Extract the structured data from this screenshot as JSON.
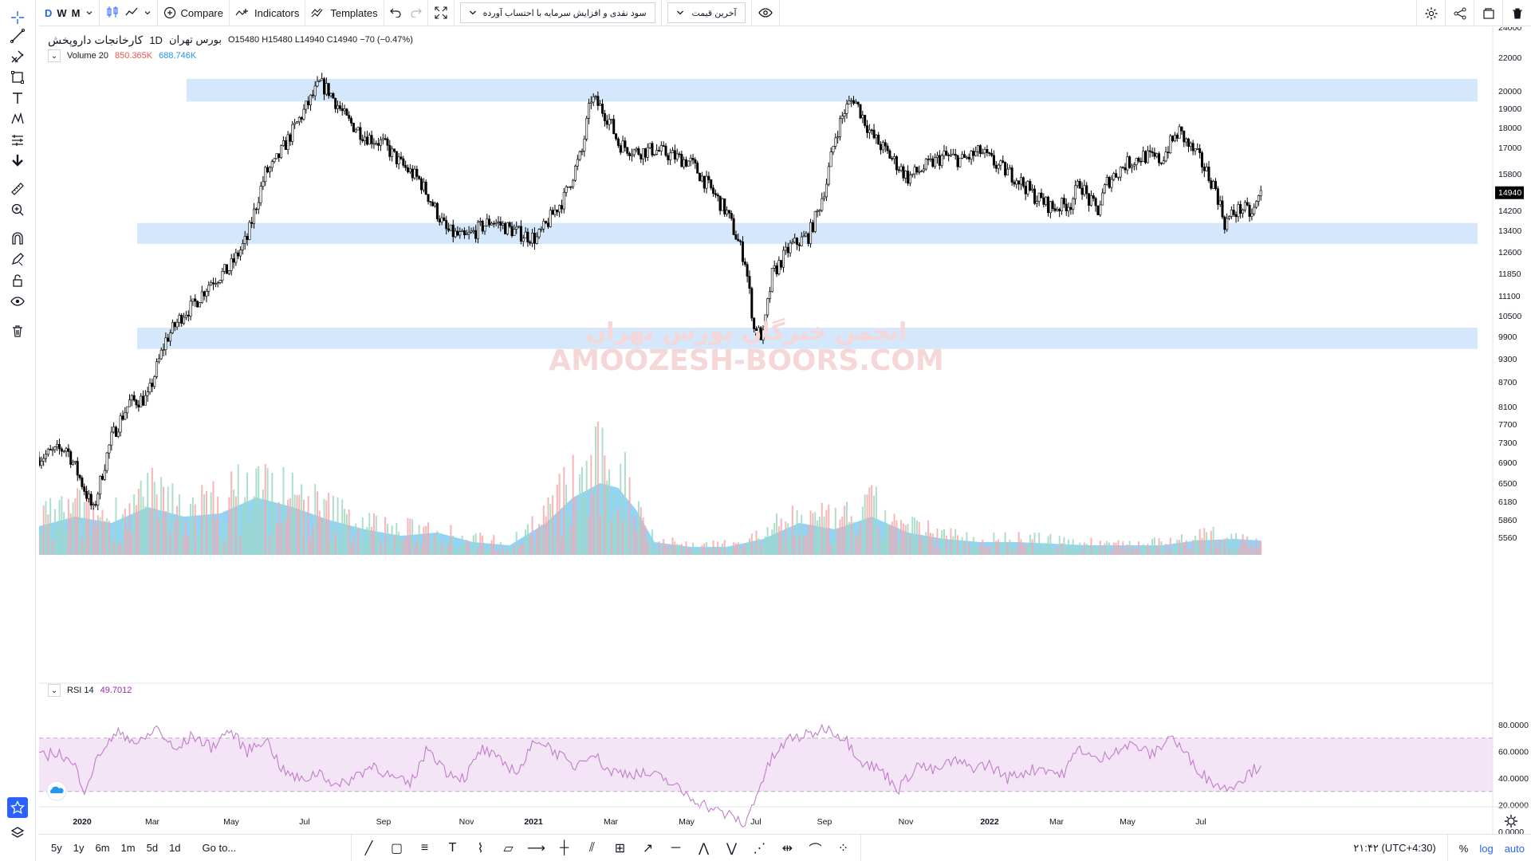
{
  "toolbar": {
    "intervals": [
      "D",
      "W",
      "M"
    ],
    "compare": "Compare",
    "indicators": "Indicators",
    "templates": "Templates",
    "preset_dropdown": "سود نقدی و افزایش سرمایه با احتساب آورده",
    "price_dropdown": "آخرین قیمت"
  },
  "legend": {
    "symbol": "کارخانجات داروپخش",
    "interval": "1D",
    "exchange": "بورس تهران",
    "o_label": "O",
    "open": "15480",
    "h_label": "H",
    "high": "15480",
    "l_label": "L",
    "low": "14940",
    "c_label": "C",
    "close": "14940",
    "change": "−70 (−0.47%)",
    "volume_label": "Volume 20",
    "volume_value": "850.365K",
    "volume_ma": "688.746K",
    "rsi_label": "RSI 14",
    "rsi_value": "49.7012"
  },
  "watermark": {
    "line1": "انجمن خبرگان بورس تهران",
    "line2": "AMOOZESH-BOORS.COM"
  },
  "chart_data": {
    "type": "candlestick",
    "price_axis": [
      "24000",
      "22000",
      "20000",
      "19000",
      "18000",
      "17000",
      "15800",
      "14940",
      "14200",
      "13400",
      "12600",
      "11850",
      "11100",
      "10500",
      "9900",
      "9300",
      "8700",
      "8100",
      "7700",
      "7300",
      "6900",
      "6500",
      "6180",
      "5860",
      "5560"
    ],
    "last_price_tag": "14940",
    "rsi_axis": [
      "80.0000",
      "60.0000",
      "40.0000",
      "20.0000",
      "0.0000"
    ],
    "time_axis": [
      "2020",
      "Mar",
      "May",
      "Jul",
      "Sep",
      "Nov",
      "2021",
      "Mar",
      "May",
      "Jul",
      "Sep",
      "Nov",
      "2022",
      "Mar",
      "May",
      "Jul"
    ],
    "zones": [
      {
        "from": 19400,
        "to": 20700
      },
      {
        "from": 12900,
        "to": 13700
      },
      {
        "from": 9550,
        "to": 10150
      }
    ],
    "price_path": [
      [
        0,
        7000
      ],
      [
        3,
        7200
      ],
      [
        6,
        6000
      ],
      [
        8,
        7400
      ],
      [
        10,
        8200
      ],
      [
        12,
        8300
      ],
      [
        14,
        9800
      ],
      [
        16,
        10600
      ],
      [
        17,
        10800
      ],
      [
        19,
        11600
      ],
      [
        21,
        12000
      ],
      [
        23,
        13100
      ],
      [
        25,
        15800
      ],
      [
        26,
        16200
      ],
      [
        28,
        17800
      ],
      [
        30,
        19500
      ],
      [
        31,
        20400
      ],
      [
        32,
        20000
      ],
      [
        34,
        18400
      ],
      [
        36,
        17600
      ],
      [
        38,
        17200
      ],
      [
        40,
        16200
      ],
      [
        42,
        15500
      ],
      [
        45,
        13400
      ],
      [
        47,
        13100
      ],
      [
        50,
        13800
      ],
      [
        53,
        13300
      ],
      [
        55,
        13100
      ],
      [
        56,
        13600
      ],
      [
        57,
        14200
      ],
      [
        58,
        14700
      ],
      [
        60,
        16800
      ],
      [
        61,
        19600
      ],
      [
        62,
        19100
      ],
      [
        63,
        18400
      ],
      [
        64,
        17200
      ],
      [
        65,
        17000
      ],
      [
        66,
        16800
      ],
      [
        68,
        16900
      ],
      [
        70,
        16600
      ],
      [
        72,
        16300
      ],
      [
        74,
        15200
      ],
      [
        76,
        14100
      ],
      [
        78,
        12300
      ],
      [
        79,
        10100
      ],
      [
        80,
        9900
      ],
      [
        81,
        11800
      ],
      [
        83,
        12800
      ],
      [
        85,
        13200
      ],
      [
        86,
        14100
      ],
      [
        87,
        15400
      ],
      [
        88,
        17600
      ],
      [
        89,
        18900
      ],
      [
        90,
        19600
      ],
      [
        91,
        18600
      ],
      [
        92,
        17600
      ],
      [
        94,
        16600
      ],
      [
        96,
        15600
      ],
      [
        98,
        16100
      ],
      [
        100,
        16600
      ],
      [
        102,
        16400
      ],
      [
        104,
        16800
      ],
      [
        106,
        16100
      ],
      [
        108,
        15600
      ],
      [
        110,
        14800
      ],
      [
        112,
        14300
      ],
      [
        114,
        14500
      ],
      [
        115,
        15400
      ],
      [
        116,
        14600
      ],
      [
        117,
        14200
      ],
      [
        118,
        15400
      ],
      [
        120,
        16200
      ],
      [
        122,
        16600
      ],
      [
        124,
        16400
      ],
      [
        125,
        17200
      ],
      [
        126,
        17800
      ],
      [
        127,
        17100
      ],
      [
        128,
        16600
      ],
      [
        130,
        15100
      ],
      [
        131,
        13700
      ],
      [
        132,
        14100
      ],
      [
        133,
        14300
      ],
      [
        134,
        14000
      ],
      [
        135,
        14940
      ]
    ],
    "rsi_path": [
      [
        0,
        55
      ],
      [
        2,
        60
      ],
      [
        4,
        48
      ],
      [
        5,
        32
      ],
      [
        7,
        62
      ],
      [
        9,
        75
      ],
      [
        11,
        65
      ],
      [
        13,
        78
      ],
      [
        15,
        60
      ],
      [
        17,
        72
      ],
      [
        19,
        63
      ],
      [
        21,
        76
      ],
      [
        23,
        60
      ],
      [
        25,
        70
      ],
      [
        27,
        45
      ],
      [
        29,
        38
      ],
      [
        31,
        45
      ],
      [
        33,
        33
      ],
      [
        35,
        42
      ],
      [
        37,
        50
      ],
      [
        39,
        40
      ],
      [
        41,
        35
      ],
      [
        43,
        63
      ],
      [
        45,
        45
      ],
      [
        47,
        40
      ],
      [
        49,
        62
      ],
      [
        51,
        52
      ],
      [
        53,
        45
      ],
      [
        55,
        70
      ],
      [
        57,
        60
      ],
      [
        59,
        48
      ],
      [
        61,
        60
      ],
      [
        63,
        45
      ],
      [
        65,
        44
      ],
      [
        67,
        43
      ],
      [
        69,
        40
      ],
      [
        71,
        30
      ],
      [
        73,
        22
      ],
      [
        75,
        15
      ],
      [
        77,
        10
      ],
      [
        78,
        4
      ],
      [
        79,
        24
      ],
      [
        81,
        55
      ],
      [
        83,
        70
      ],
      [
        85,
        72
      ],
      [
        87,
        78
      ],
      [
        89,
        70
      ],
      [
        91,
        52
      ],
      [
        93,
        46
      ],
      [
        95,
        32
      ],
      [
        97,
        50
      ],
      [
        99,
        45
      ],
      [
        101,
        53
      ],
      [
        103,
        48
      ],
      [
        105,
        50
      ],
      [
        107,
        40
      ],
      [
        109,
        45
      ],
      [
        111,
        48
      ],
      [
        113,
        42
      ],
      [
        115,
        63
      ],
      [
        117,
        52
      ],
      [
        119,
        62
      ],
      [
        121,
        65
      ],
      [
        123,
        57
      ],
      [
        125,
        72
      ],
      [
        127,
        55
      ],
      [
        129,
        40
      ],
      [
        131,
        32
      ],
      [
        133,
        40
      ],
      [
        135,
        50
      ]
    ],
    "volume_path": [
      [
        0,
        0.18
      ],
      [
        4,
        0.24
      ],
      [
        8,
        0.2
      ],
      [
        12,
        0.3
      ],
      [
        16,
        0.24
      ],
      [
        20,
        0.26
      ],
      [
        24,
        0.36
      ],
      [
        28,
        0.3
      ],
      [
        32,
        0.22
      ],
      [
        36,
        0.16
      ],
      [
        40,
        0.12
      ],
      [
        44,
        0.14
      ],
      [
        48,
        0.08
      ],
      [
        52,
        0.06
      ],
      [
        56,
        0.2
      ],
      [
        59,
        0.36
      ],
      [
        62,
        0.45
      ],
      [
        64,
        0.42
      ],
      [
        66,
        0.28
      ],
      [
        68,
        0.08
      ],
      [
        72,
        0.05
      ],
      [
        76,
        0.05
      ],
      [
        80,
        0.1
      ],
      [
        84,
        0.2
      ],
      [
        88,
        0.16
      ],
      [
        92,
        0.24
      ],
      [
        96,
        0.14
      ],
      [
        100,
        0.1
      ],
      [
        104,
        0.08
      ],
      [
        108,
        0.08
      ],
      [
        112,
        0.07
      ],
      [
        116,
        0.06
      ],
      [
        120,
        0.06
      ],
      [
        124,
        0.06
      ],
      [
        128,
        0.09
      ],
      [
        132,
        0.1
      ],
      [
        135,
        0.09
      ]
    ]
  },
  "bottombar": {
    "ranges": [
      "5y",
      "1y",
      "6m",
      "1m",
      "5d",
      "1d"
    ],
    "goto": "Go to...",
    "time": "۲۱:۴۲ (UTC+4:30)",
    "percent": "%",
    "log": "log",
    "auto": "auto"
  }
}
